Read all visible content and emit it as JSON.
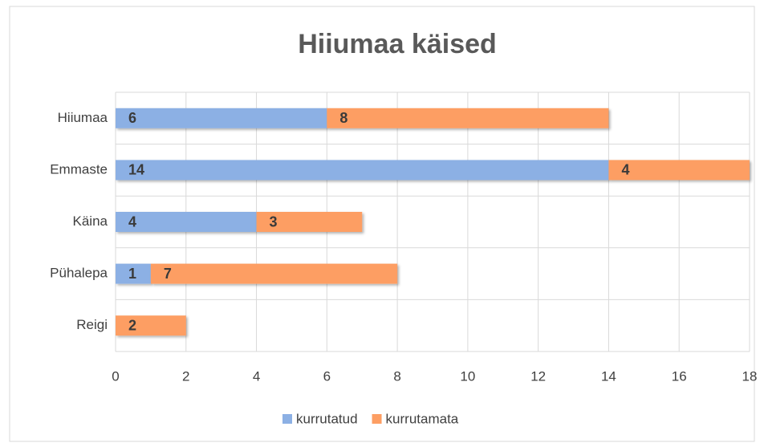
{
  "chart_data": {
    "type": "bar",
    "orientation": "horizontal",
    "stacked": true,
    "title": "Hiiumaa käised",
    "categories": [
      "Hiiumaa",
      "Emmaste",
      "Käina",
      "Pühalepa",
      "Reigi"
    ],
    "series": [
      {
        "name": "kurrutatud",
        "color": "#8cb0e4",
        "values": [
          6,
          14,
          4,
          1,
          0
        ]
      },
      {
        "name": "kurrutamata",
        "color": "#fd9e63",
        "values": [
          8,
          4,
          3,
          7,
          2
        ]
      }
    ],
    "xlim": [
      0,
      18
    ],
    "xticks": [
      0,
      2,
      4,
      6,
      8,
      10,
      12,
      14,
      16,
      18
    ],
    "grid": true,
    "legend": "bottom"
  }
}
